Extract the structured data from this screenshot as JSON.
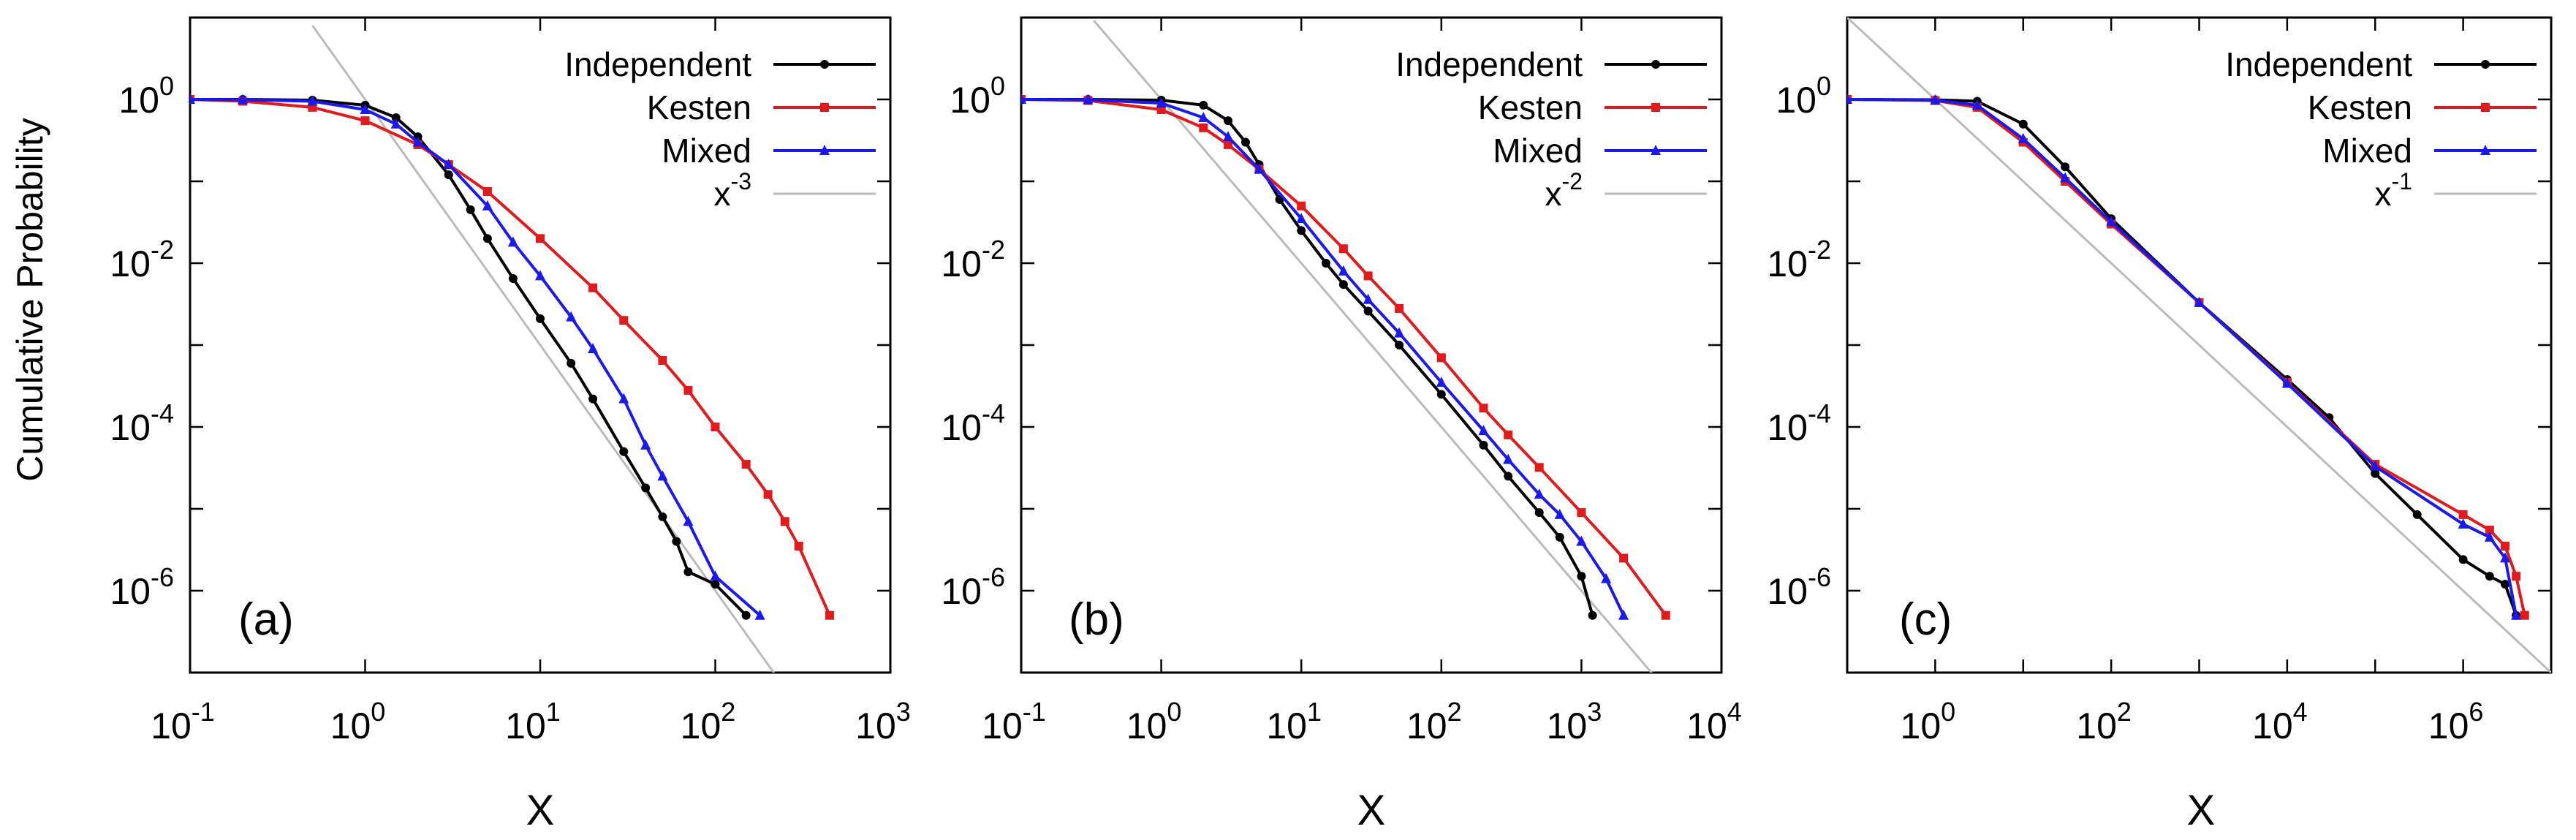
{
  "figure": {
    "ylabel": "Cumulative Probability"
  },
  "chart_data": [
    {
      "type": "line",
      "panel_label": "(a)",
      "xlabel": "X",
      "ylabel": "Cumulative Probability",
      "xscale": "log",
      "yscale": "log",
      "xlim": [
        0.1,
        1000
      ],
      "ylim": [
        1e-07,
        10
      ],
      "xticks": [
        "-1",
        "0",
        "1",
        "2",
        "3"
      ],
      "yticks": [
        "0",
        "-2",
        "-4",
        "-6"
      ],
      "tick_base": "10",
      "legend_position": "top-right",
      "series": [
        {
          "name": "Independent",
          "color": "#000000",
          "marker": "circle",
          "x": [
            0.1,
            0.2,
            0.5,
            1,
            1.5,
            2,
            3,
            4,
            5,
            7,
            10,
            15,
            20,
            30,
            40,
            50,
            60,
            70,
            100,
            150
          ],
          "y": [
            1.0,
            1.0,
            0.98,
            0.85,
            0.6,
            0.35,
            0.12,
            0.045,
            0.02,
            0.0065,
            0.0021,
            0.0006,
            0.00022,
            5e-05,
            1.8e-05,
            8e-06,
            4e-06,
            1.7e-06,
            1.2e-06,
            5e-07
          ]
        },
        {
          "name": "Kesten",
          "color": "#e31a1c",
          "marker": "square",
          "x": [
            0.1,
            0.2,
            0.5,
            1,
            2,
            3,
            5,
            10,
            20,
            30,
            50,
            70,
            100,
            150,
            200,
            250,
            300,
            450
          ],
          "y": [
            1.0,
            0.95,
            0.8,
            0.55,
            0.28,
            0.16,
            0.075,
            0.02,
            0.005,
            0.002,
            0.00065,
            0.00028,
            0.0001,
            3.5e-05,
            1.5e-05,
            7e-06,
            3.5e-06,
            5e-07
          ]
        },
        {
          "name": "Mixed",
          "color": "#1a1af0",
          "marker": "triangle",
          "x": [
            0.1,
            0.2,
            0.5,
            1,
            1.5,
            2,
            3,
            5,
            7,
            10,
            15,
            20,
            30,
            40,
            50,
            70,
            100,
            180
          ],
          "y": [
            1.0,
            0.99,
            0.95,
            0.75,
            0.5,
            0.3,
            0.16,
            0.05,
            0.018,
            0.007,
            0.0022,
            0.0009,
            0.00022,
            6e-05,
            2.5e-05,
            7e-06,
            1.5e-06,
            5e-07
          ]
        },
        {
          "name": "x^-3",
          "color": "#bbbbbb",
          "marker": "none",
          "exponent": -3,
          "x": [
            0.5,
            220
          ],
          "y": [
            8,
            9.4e-08
          ]
        }
      ],
      "legend_labels": [
        "Independent",
        "Kesten",
        "Mixed",
        "x"
      ],
      "legend_exponent": "-3"
    },
    {
      "type": "line",
      "panel_label": "(b)",
      "xlabel": "X",
      "ylabel": "Cumulative Probability",
      "xscale": "log",
      "yscale": "log",
      "xlim": [
        0.1,
        10000
      ],
      "ylim": [
        1e-07,
        10
      ],
      "xticks": [
        "-1",
        "0",
        "1",
        "2",
        "3",
        "4"
      ],
      "yticks": [
        "0",
        "-2",
        "-4",
        "-6"
      ],
      "tick_base": "10",
      "legend_position": "top-right",
      "series": [
        {
          "name": "Independent",
          "color": "#000000",
          "marker": "circle",
          "x": [
            0.1,
            0.3,
            1,
            2,
            3,
            4,
            5,
            7,
            10,
            15,
            20,
            30,
            50,
            100,
            200,
            300,
            500,
            700,
            1000,
            1200
          ],
          "y": [
            1.0,
            1.0,
            0.98,
            0.85,
            0.55,
            0.3,
            0.16,
            0.06,
            0.025,
            0.01,
            0.0055,
            0.0026,
            0.001,
            0.00025,
            6e-05,
            2.5e-05,
            9e-06,
            4.5e-06,
            1.5e-06,
            5e-07
          ]
        },
        {
          "name": "Kesten",
          "color": "#e31a1c",
          "marker": "square",
          "x": [
            0.1,
            0.3,
            1,
            2,
            3,
            5,
            10,
            20,
            30,
            50,
            100,
            200,
            300,
            500,
            1000,
            2000,
            4000
          ],
          "y": [
            1.0,
            0.97,
            0.75,
            0.45,
            0.28,
            0.14,
            0.05,
            0.015,
            0.007,
            0.0028,
            0.0007,
            0.00017,
            8e-05,
            3.2e-05,
            9e-06,
            2.5e-06,
            5e-07
          ]
        },
        {
          "name": "Mixed",
          "color": "#1a1af0",
          "marker": "triangle",
          "x": [
            0.1,
            0.3,
            1,
            2,
            3,
            5,
            10,
            20,
            30,
            50,
            100,
            200,
            300,
            500,
            700,
            1000,
            1500,
            2000
          ],
          "y": [
            1.0,
            0.99,
            0.9,
            0.6,
            0.35,
            0.14,
            0.035,
            0.008,
            0.0036,
            0.0014,
            0.00035,
            9e-05,
            4e-05,
            1.5e-05,
            8.5e-06,
            4e-06,
            1.4e-06,
            5e-07
          ]
        },
        {
          "name": "x^-2",
          "color": "#bbbbbb",
          "marker": "none",
          "exponent": -2,
          "x": [
            0.33,
            3600
          ],
          "y": [
            9.2,
            7.7e-08
          ]
        }
      ],
      "legend_labels": [
        "Independent",
        "Kesten",
        "Mixed",
        "x"
      ],
      "legend_exponent": "-2"
    },
    {
      "type": "line",
      "panel_label": "(c)",
      "xlabel": "X",
      "ylabel": "Cumulative Probability",
      "xscale": "log",
      "yscale": "log",
      "xlim": [
        0.1,
        10000000
      ],
      "ylim": [
        1e-07,
        10
      ],
      "xticks": [
        "0",
        "2",
        "4",
        "6"
      ],
      "yticks": [
        "0",
        "-2",
        "-4",
        "-6"
      ],
      "tick_base": "10",
      "legend_position": "top-right",
      "series": [
        {
          "name": "Independent",
          "color": "#000000",
          "marker": "circle",
          "x": [
            0.1,
            1,
            3,
            10,
            30,
            100,
            1000,
            10000,
            30000,
            100000,
            300000,
            1000000,
            2000000,
            3000000,
            4000000
          ],
          "y": [
            1.0,
            0.99,
            0.95,
            0.5,
            0.15,
            0.035,
            0.0033,
            0.00038,
            0.00013,
            2.7e-05,
            8.5e-06,
            2.4e-06,
            1.5e-06,
            1.2e-06,
            5e-07
          ]
        },
        {
          "name": "Kesten",
          "color": "#e31a1c",
          "marker": "square",
          "x": [
            0.1,
            1,
            3,
            10,
            30,
            100,
            1000,
            10000,
            100000,
            1000000,
            2000000,
            3000000,
            4000000,
            5000000
          ],
          "y": [
            1.0,
            0.97,
            0.8,
            0.3,
            0.1,
            0.03,
            0.0033,
            0.00035,
            3.5e-05,
            8.5e-06,
            5.5e-06,
            3.5e-06,
            1.5e-06,
            5e-07
          ]
        },
        {
          "name": "Mixed",
          "color": "#1a1af0",
          "marker": "triangle",
          "x": [
            0.1,
            1,
            3,
            10,
            30,
            100,
            1000,
            10000,
            100000,
            1000000,
            2000000,
            3000000,
            4000000
          ],
          "y": [
            1.0,
            0.98,
            0.85,
            0.33,
            0.11,
            0.032,
            0.0033,
            0.00034,
            3.3e-05,
            6.5e-06,
            4.5e-06,
            2.5e-06,
            5e-07
          ]
        },
        {
          "name": "x^-1",
          "color": "#bbbbbb",
          "marker": "none",
          "exponent": -1,
          "x": [
            0.1,
            10000000
          ],
          "y": [
            10,
            1e-07
          ]
        }
      ],
      "legend_labels": [
        "Independent",
        "Kesten",
        "Mixed",
        "x"
      ],
      "legend_exponent": "-1"
    }
  ]
}
